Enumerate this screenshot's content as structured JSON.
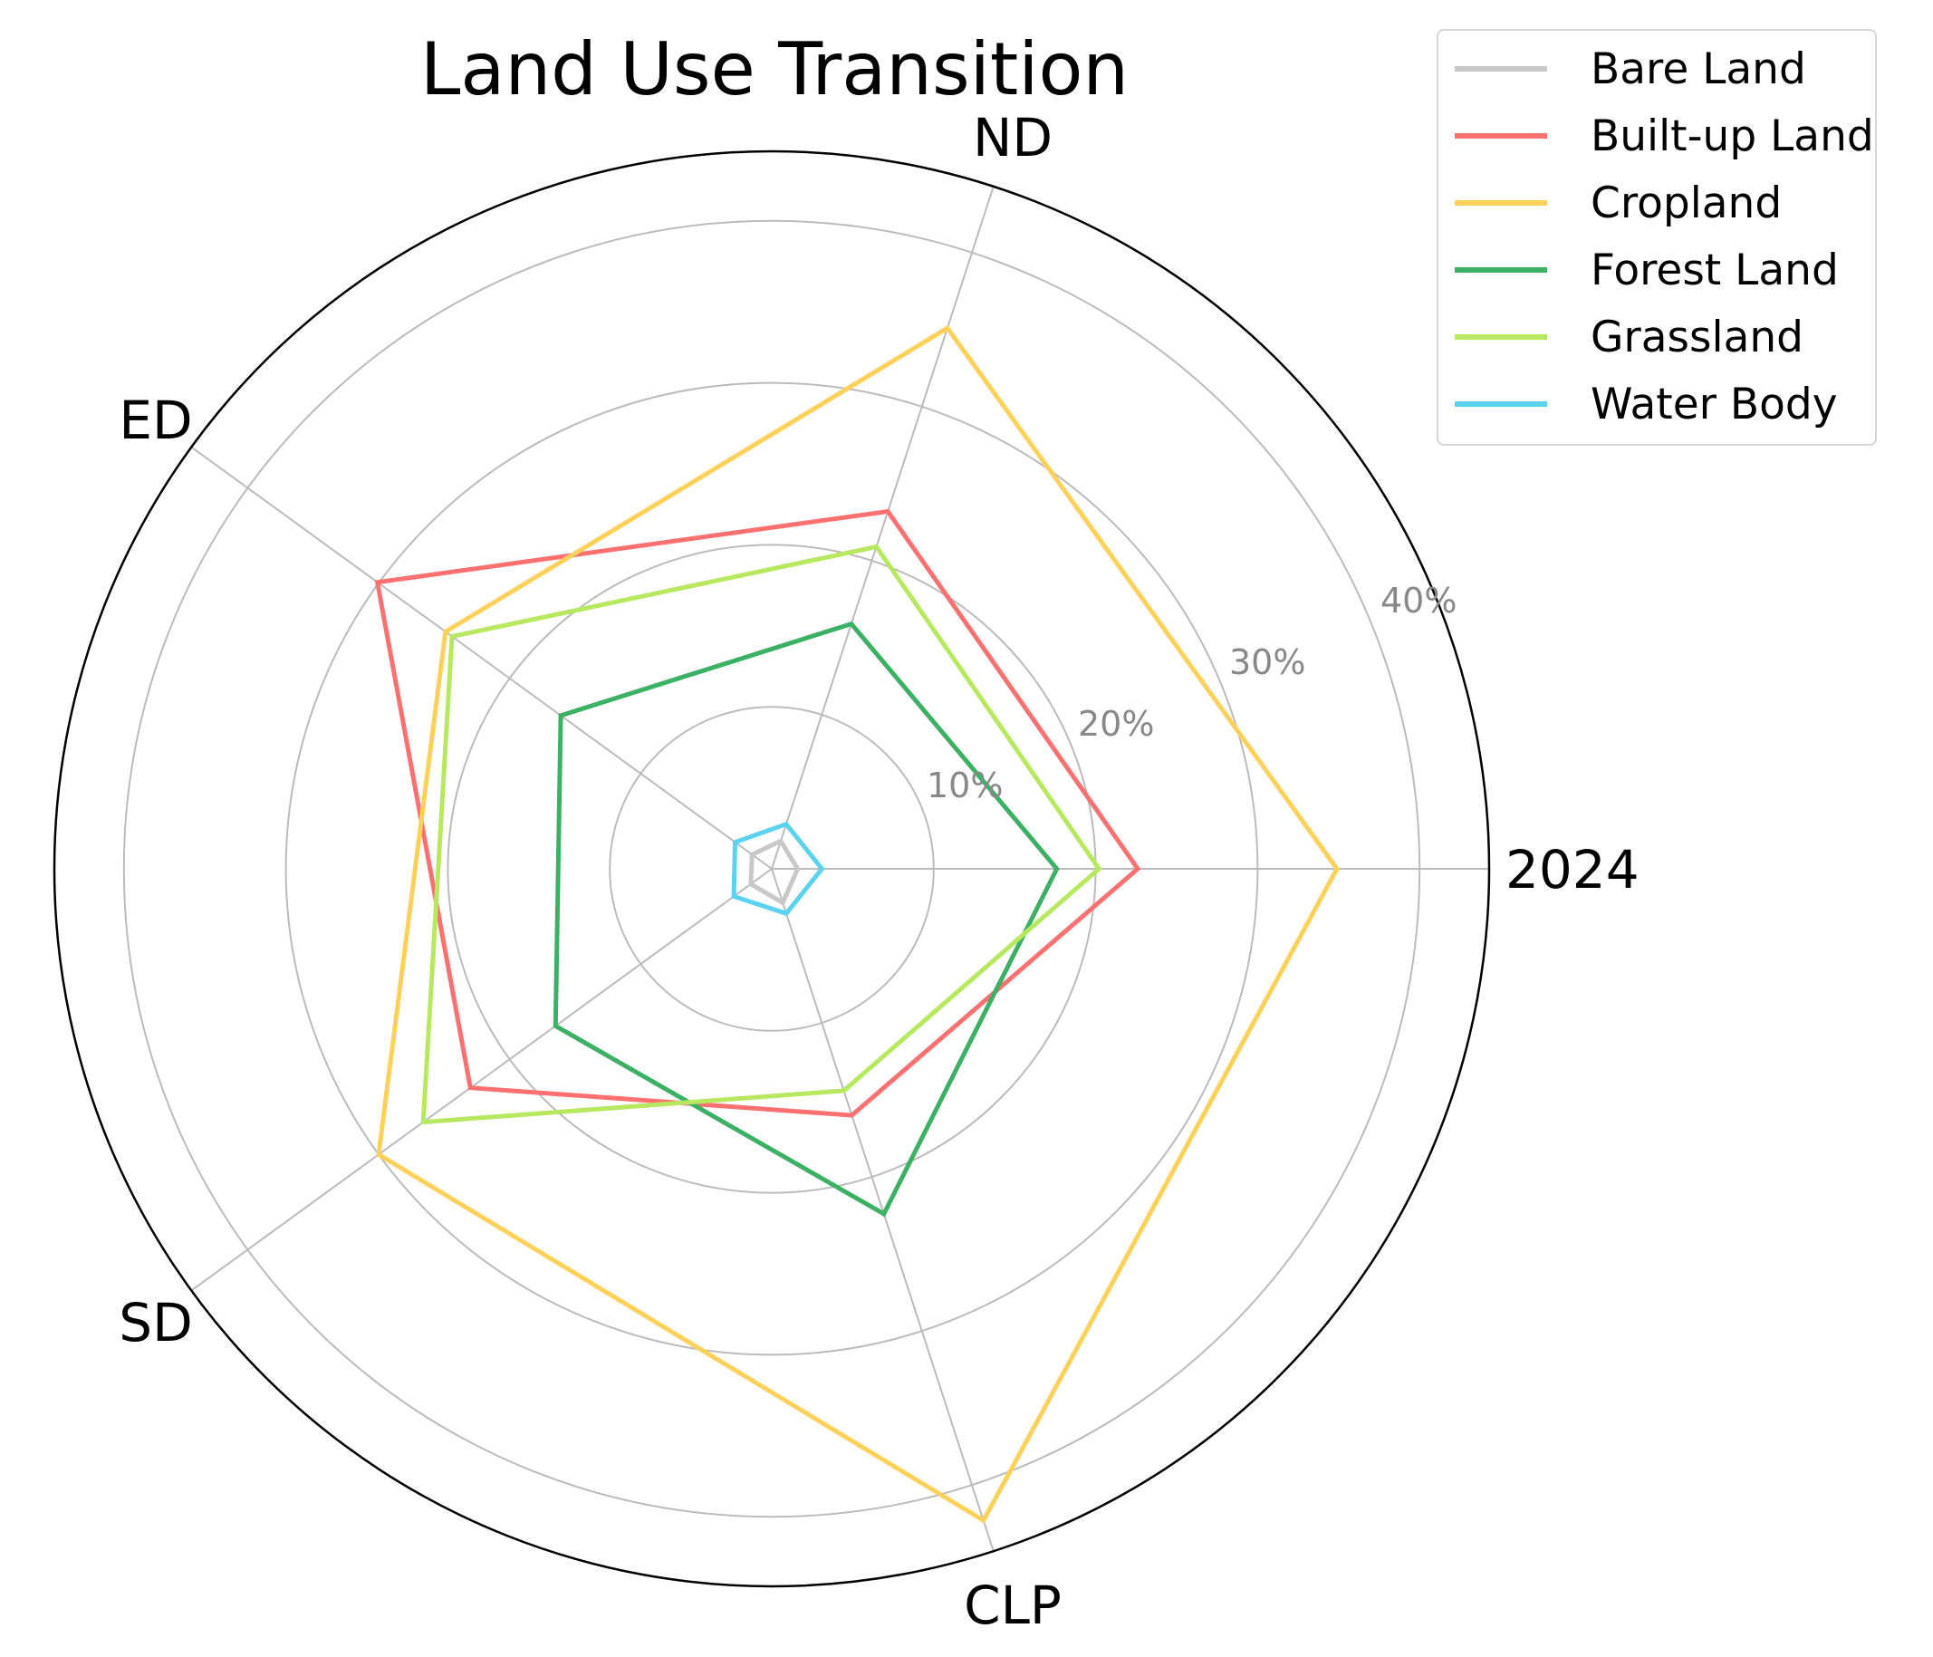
{
  "chart_data": {
    "type": "radar",
    "title": "Land Use Transition",
    "categories": [
      "2024",
      "ND",
      "ED",
      "SD",
      "CLP"
    ],
    "radial_ticks": [
      10,
      20,
      30,
      40
    ],
    "radial_tick_labels": [
      "10%",
      "20%",
      "30%",
      "40%"
    ],
    "rlim": [
      0,
      44.3
    ],
    "value_unit": "%",
    "grid": true,
    "legend_position": "upper right",
    "series": [
      {
        "name": "Bare Land",
        "color": "#C8C8C8",
        "values": [
          1.6,
          1.8,
          1.5,
          1.6,
          2.2
        ]
      },
      {
        "name": "Built-up Land",
        "color": "#FF7070",
        "values": [
          22.6,
          23.2,
          30.1,
          23.0,
          16.0
        ]
      },
      {
        "name": "Cropland",
        "color": "#FFD05A",
        "values": [
          34.9,
          35.1,
          24.9,
          30.0,
          42.3
        ]
      },
      {
        "name": "Forest Land",
        "color": "#3CB064",
        "values": [
          17.6,
          15.9,
          16.1,
          16.5,
          22.4
        ]
      },
      {
        "name": "Grassland",
        "color": "#B8E860",
        "values": [
          20.2,
          20.9,
          24.4,
          26.6,
          14.4
        ]
      },
      {
        "name": "Water Body",
        "color": "#5AD2F0",
        "values": [
          3.1,
          2.9,
          2.8,
          2.9,
          2.9
        ]
      }
    ]
  },
  "chart": {
    "title": "Land Use Transition",
    "axes": [
      "2024",
      "ND",
      "ED",
      "SD",
      "CLP"
    ],
    "ticks": [
      "10%",
      "20%",
      "30%",
      "40%"
    ]
  },
  "legend": {
    "items": [
      {
        "label": "Bare Land",
        "color": "#C8C8C8"
      },
      {
        "label": "Built-up Land",
        "color": "#FF7070"
      },
      {
        "label": "Cropland",
        "color": "#FFD05A"
      },
      {
        "label": "Forest Land",
        "color": "#3CB064"
      },
      {
        "label": "Grassland",
        "color": "#B8E860"
      },
      {
        "label": "Water Body",
        "color": "#5AD2F0"
      }
    ]
  },
  "style": {
    "grid_color": "#BBBBBB",
    "tick_color": "#888888",
    "frame_color": "#000000"
  }
}
